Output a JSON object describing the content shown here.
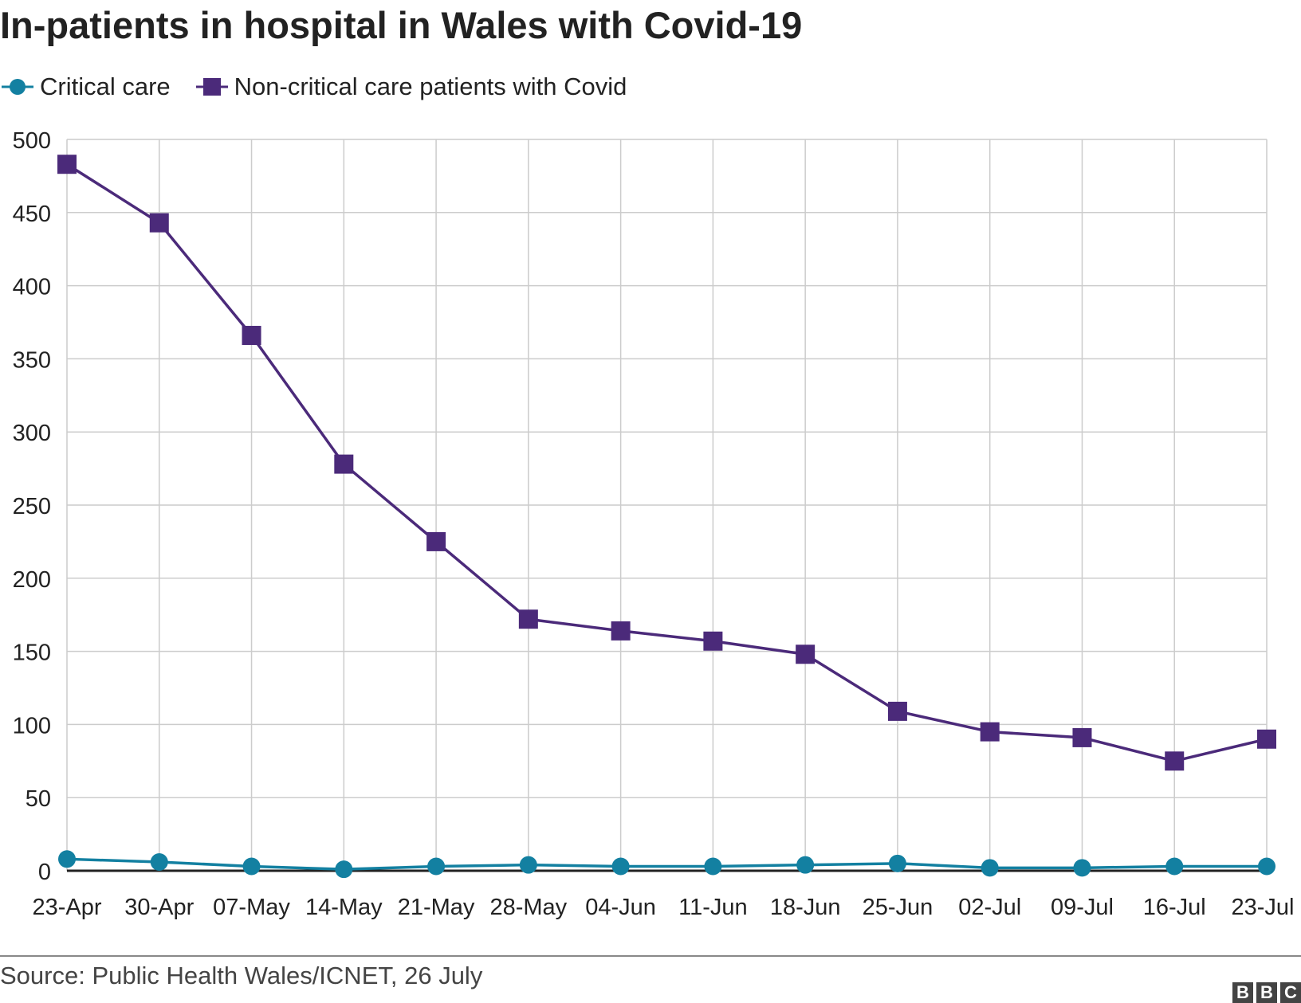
{
  "chart_data": {
    "type": "line",
    "title": "In-patients in hospital in Wales with Covid-19",
    "xlabel": "",
    "ylabel": "",
    "categories": [
      "23-Apr",
      "30-Apr",
      "07-May",
      "14-May",
      "21-May",
      "28-May",
      "04-Jun",
      "11-Jun",
      "18-Jun",
      "25-Jun",
      "02-Jul",
      "09-Jul",
      "16-Jul",
      "23-Jul"
    ],
    "ylim": [
      0,
      500
    ],
    "yticks": [
      "0",
      "50",
      "100",
      "150",
      "200",
      "250",
      "300",
      "350",
      "400",
      "450",
      "500"
    ],
    "grid": true,
    "legend_position": "top-left",
    "series": [
      {
        "name": "Critical care",
        "color": "#1380a1",
        "marker": "circle",
        "values": [
          8,
          6,
          3,
          1,
          3,
          4,
          3,
          3,
          4,
          5,
          2,
          2,
          3,
          3
        ]
      },
      {
        "name": "Non-critical care patients with Covid",
        "color": "#4b2a7a",
        "marker": "square",
        "values": [
          483,
          443,
          366,
          278,
          225,
          172,
          164,
          157,
          148,
          109,
          95,
          91,
          75,
          90
        ]
      }
    ]
  },
  "footer": {
    "source": "Source: Public Health Wales/ICNET, 26 July",
    "logo_letters": [
      "B",
      "B",
      "C"
    ]
  }
}
